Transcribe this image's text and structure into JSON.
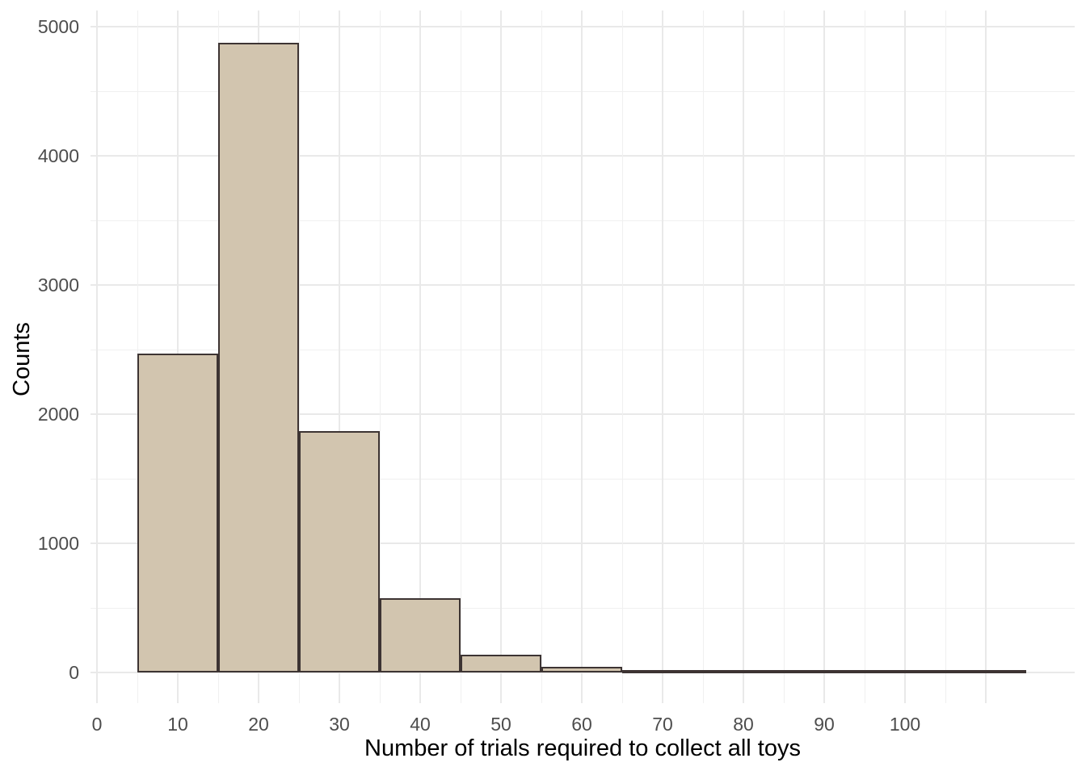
{
  "figure": {
    "background": "#FFFFFF"
  },
  "chart_data": {
    "type": "bar",
    "subtype": "histogram",
    "title": "",
    "xlabel": "Number of trials required to collect all toys",
    "ylabel": "Counts",
    "bin_edges": [
      5,
      15,
      25,
      35,
      45,
      55,
      65,
      75,
      85,
      95,
      105,
      115
    ],
    "counts": [
      2470,
      4875,
      1870,
      575,
      140,
      45,
      12,
      3,
      1,
      1,
      1
    ],
    "x_ticks": [
      0,
      10,
      20,
      30,
      40,
      50,
      60,
      70,
      80,
      90,
      100
    ],
    "y_ticks": [
      0,
      1000,
      2000,
      3000,
      4000,
      5000
    ],
    "x_minor_step": 5,
    "y_minor_step": 500,
    "x_grid_max": 110,
    "xlim": [
      -0.8,
      121.0
    ],
    "ylim": [
      -237.5,
      5125
    ],
    "grid": true,
    "legend": false,
    "colors": {
      "bar_fill": "#D2C5AF",
      "bar_stroke": "#3D3433",
      "grid_major": "#E9E9E9",
      "grid_minor": "#F0F0F0",
      "tick_label": "#4D4D4D",
      "axis_title": "#000000"
    }
  }
}
